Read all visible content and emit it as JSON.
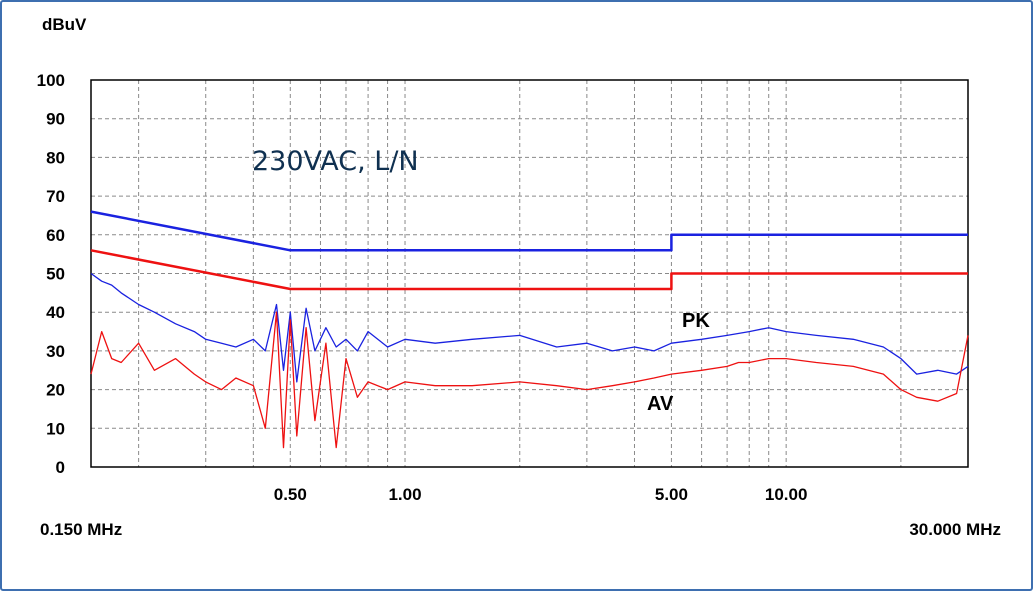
{
  "chart_data": {
    "type": "line",
    "ylabel": "dBuV",
    "x_scale": "log",
    "xlim": [
      0.15,
      30.0
    ],
    "ylim": [
      0,
      100
    ],
    "grid": true,
    "y_ticks": [
      0,
      10,
      20,
      30,
      40,
      50,
      60,
      70,
      80,
      90,
      100
    ],
    "x_tick_labels": [
      {
        "value": 0.5,
        "label": "0.50"
      },
      {
        "value": 1.0,
        "label": "1.00"
      },
      {
        "value": 5.0,
        "label": "5.00"
      },
      {
        "value": 10.0,
        "label": "10.00"
      }
    ],
    "x_start_label": "0.150 MHz",
    "x_end_label": "30.000 MHz",
    "annotation": "230VAC, L/N",
    "colors": {
      "pk": "#1a22e0",
      "av": "#ee1111",
      "grid": "#8a8a8a",
      "frame": "#3e6fb0"
    },
    "series": [
      {
        "name": "PK",
        "role": "limit",
        "x": [
          0.15,
          0.5,
          0.5,
          5.0,
          5.0,
          30.0
        ],
        "values": [
          66,
          56,
          56,
          56,
          60,
          60
        ]
      },
      {
        "name": "AV",
        "role": "limit",
        "x": [
          0.15,
          0.5,
          0.5,
          5.0,
          5.0,
          30.0
        ],
        "values": [
          56,
          46,
          46,
          46,
          50,
          50
        ]
      },
      {
        "name": "PK",
        "role": "measurement",
        "x": [
          0.15,
          0.16,
          0.17,
          0.18,
          0.2,
          0.22,
          0.25,
          0.28,
          0.3,
          0.33,
          0.36,
          0.4,
          0.43,
          0.46,
          0.48,
          0.5,
          0.52,
          0.55,
          0.58,
          0.62,
          0.66,
          0.7,
          0.75,
          0.8,
          0.9,
          1.0,
          1.2,
          1.5,
          2.0,
          2.5,
          3.0,
          3.5,
          4.0,
          4.5,
          5.0,
          6.0,
          7.0,
          8.0,
          9.0,
          10.0,
          12.0,
          15.0,
          18.0,
          20.0,
          22.0,
          25.0,
          28.0,
          30.0
        ],
        "values": [
          50,
          48,
          47,
          45,
          42,
          40,
          37,
          35,
          33,
          32,
          31,
          33,
          30,
          42,
          25,
          40,
          22,
          41,
          30,
          36,
          31,
          33,
          30,
          35,
          31,
          33,
          32,
          33,
          34,
          31,
          32,
          30,
          31,
          30,
          32,
          33,
          34,
          35,
          36,
          35,
          34,
          33,
          31,
          28,
          24,
          25,
          24,
          26
        ]
      },
      {
        "name": "AV",
        "role": "measurement",
        "x": [
          0.15,
          0.16,
          0.17,
          0.18,
          0.2,
          0.22,
          0.25,
          0.28,
          0.3,
          0.33,
          0.36,
          0.4,
          0.43,
          0.46,
          0.48,
          0.5,
          0.52,
          0.55,
          0.58,
          0.62,
          0.66,
          0.7,
          0.75,
          0.8,
          0.9,
          1.0,
          1.2,
          1.5,
          2.0,
          2.5,
          3.0,
          3.5,
          4.0,
          4.5,
          5.0,
          6.0,
          7.0,
          7.5,
          8.0,
          9.0,
          10.0,
          12.0,
          15.0,
          18.0,
          20.0,
          22.0,
          25.0,
          28.0,
          30.0
        ],
        "values": [
          24,
          35,
          28,
          27,
          32,
          25,
          28,
          24,
          22,
          20,
          23,
          21,
          10,
          40,
          5,
          38,
          8,
          36,
          12,
          32,
          5,
          28,
          18,
          22,
          20,
          22,
          21,
          21,
          22,
          21,
          20,
          21,
          22,
          23,
          24,
          25,
          26,
          27,
          27,
          28,
          28,
          27,
          26,
          24,
          20,
          18,
          17,
          19,
          34
        ]
      }
    ]
  }
}
